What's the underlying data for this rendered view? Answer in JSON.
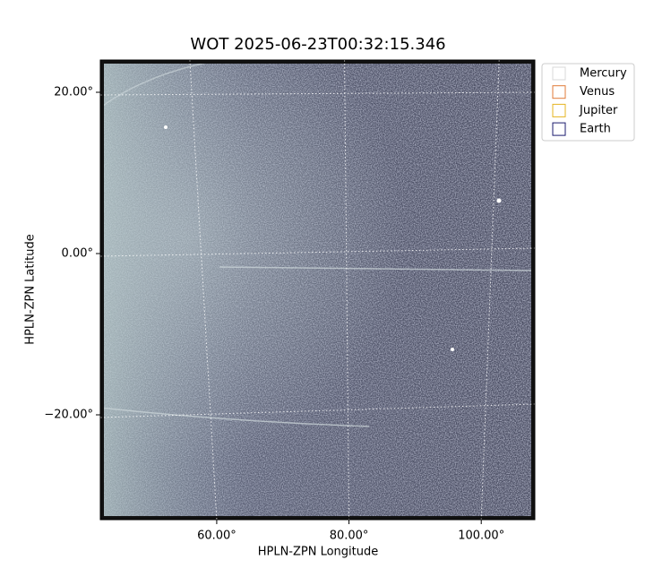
{
  "chart_data": {
    "type": "image",
    "title": "WOT 2025-06-23T00:32:15.346",
    "xlabel": "HPLN-ZPN Longitude",
    "ylabel": "HPLN-ZPN Latitude",
    "xlim": [
      42.4,
      108.1
    ],
    "ylim": [
      -33,
      24
    ],
    "xticks": [
      {
        "value": 60,
        "label": "60.00°"
      },
      {
        "value": 80,
        "label": "80.00°"
      },
      {
        "value": 100,
        "label": "100.00°"
      }
    ],
    "yticks": [
      {
        "value": -20,
        "label": "−20.00°"
      },
      {
        "value": 0,
        "label": "0.00°"
      },
      {
        "value": 20,
        "label": "20.00°"
      }
    ],
    "grid": true,
    "legend_position": "outside-upper-right",
    "legend": [
      {
        "name": "Mercury",
        "color": "#d8d8d8"
      },
      {
        "name": "Venus",
        "color": "#e07b39"
      },
      {
        "name": "Jupiter",
        "color": "#e6b422"
      },
      {
        "name": "Earth",
        "color": "#1b1b6e"
      }
    ]
  }
}
